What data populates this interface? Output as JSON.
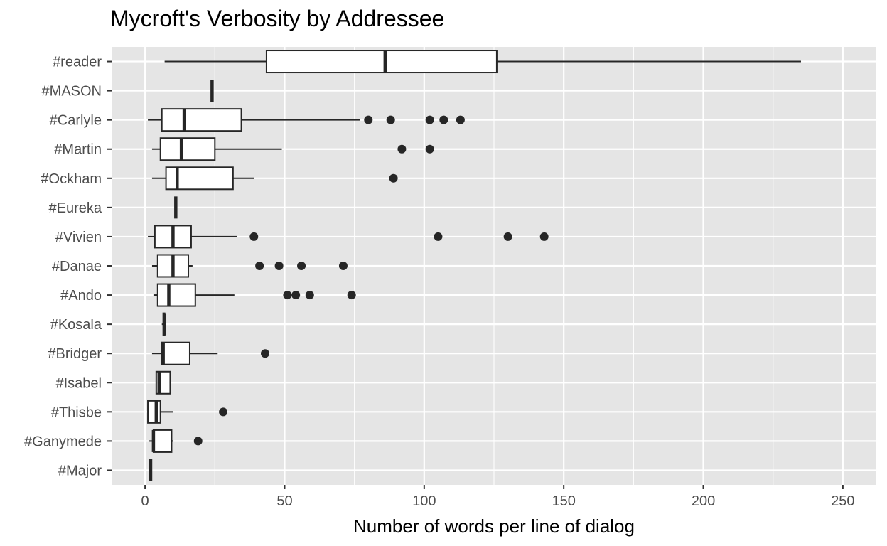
{
  "chart_data": {
    "type": "boxplot",
    "title": "Mycroft's Verbosity by Addressee",
    "xlabel": "Number of words per line of dialog",
    "ylabel": "",
    "xlim": [
      -12,
      262
    ],
    "xticks": [
      0,
      50,
      100,
      150,
      200,
      250
    ],
    "grid": true,
    "legend": "none",
    "colors": {
      "panel": "#e5e5e5",
      "grid": "#ffffff",
      "box_fill": "#ffffff",
      "box_stroke": "#262626",
      "outlier": "#262626"
    },
    "categories": [
      "#reader",
      "#MASON",
      "#Carlyle",
      "#Martin",
      "#Ockham",
      "#Eureka",
      "#Vivien",
      "#Danae",
      "#Ando",
      "#Kosala",
      "#Bridger",
      "#Isabel",
      "#Thisbe",
      "#Ganymede",
      "#Major"
    ],
    "series": [
      {
        "label": "#reader",
        "min": 7,
        "q1": 43.5,
        "median": 86,
        "q3": 126,
        "max": 235,
        "outliers": []
      },
      {
        "label": "#MASON",
        "min": 24,
        "q1": 24,
        "median": 24,
        "q3": 24,
        "max": 24,
        "outliers": []
      },
      {
        "label": "#Carlyle",
        "min": 1,
        "q1": 6,
        "median": 14,
        "q3": 34.5,
        "max": 77,
        "outliers": [
          80,
          88,
          102,
          107,
          113
        ]
      },
      {
        "label": "#Martin",
        "min": 2.5,
        "q1": 5.5,
        "median": 13,
        "q3": 25,
        "max": 49,
        "outliers": [
          92,
          102
        ]
      },
      {
        "label": "#Ockham",
        "min": 2.5,
        "q1": 7.5,
        "median": 11.5,
        "q3": 31.5,
        "max": 39,
        "outliers": [
          89
        ]
      },
      {
        "label": "#Eureka",
        "min": 11,
        "q1": 11,
        "median": 11,
        "q3": 11,
        "max": 11,
        "outliers": []
      },
      {
        "label": "#Vivien",
        "min": 1,
        "q1": 3.5,
        "median": 10,
        "q3": 16.5,
        "max": 33,
        "outliers": [
          39,
          105,
          130,
          143
        ]
      },
      {
        "label": "#Danae",
        "min": 2.5,
        "q1": 4.5,
        "median": 10,
        "q3": 15.5,
        "max": 17,
        "outliers": [
          41,
          48,
          56,
          71
        ]
      },
      {
        "label": "#Ando",
        "min": 3,
        "q1": 4.5,
        "median": 8.5,
        "q3": 18,
        "max": 32,
        "outliers": [
          51,
          54,
          59,
          74
        ]
      },
      {
        "label": "#Kosala",
        "min": 6,
        "q1": 6.5,
        "median": 7,
        "q3": 7,
        "max": 7.5,
        "outliers": []
      },
      {
        "label": "#Bridger",
        "min": 2.5,
        "q1": 6,
        "median": 6.5,
        "q3": 16,
        "max": 26,
        "outliers": [
          43
        ]
      },
      {
        "label": "#Isabel",
        "min": 4,
        "q1": 4,
        "median": 5,
        "q3": 9,
        "max": 9,
        "outliers": []
      },
      {
        "label": "#Thisbe",
        "min": 1,
        "q1": 1,
        "median": 4,
        "q3": 5.5,
        "max": 10,
        "outliers": [
          28
        ]
      },
      {
        "label": "#Ganymede",
        "min": 1.5,
        "q1": 3,
        "median": 3,
        "q3": 9.5,
        "max": 10,
        "outliers": [
          19
        ]
      },
      {
        "label": "#Major",
        "min": 2,
        "q1": 2,
        "median": 2,
        "q3": 2,
        "max": 2,
        "outliers": []
      }
    ]
  }
}
